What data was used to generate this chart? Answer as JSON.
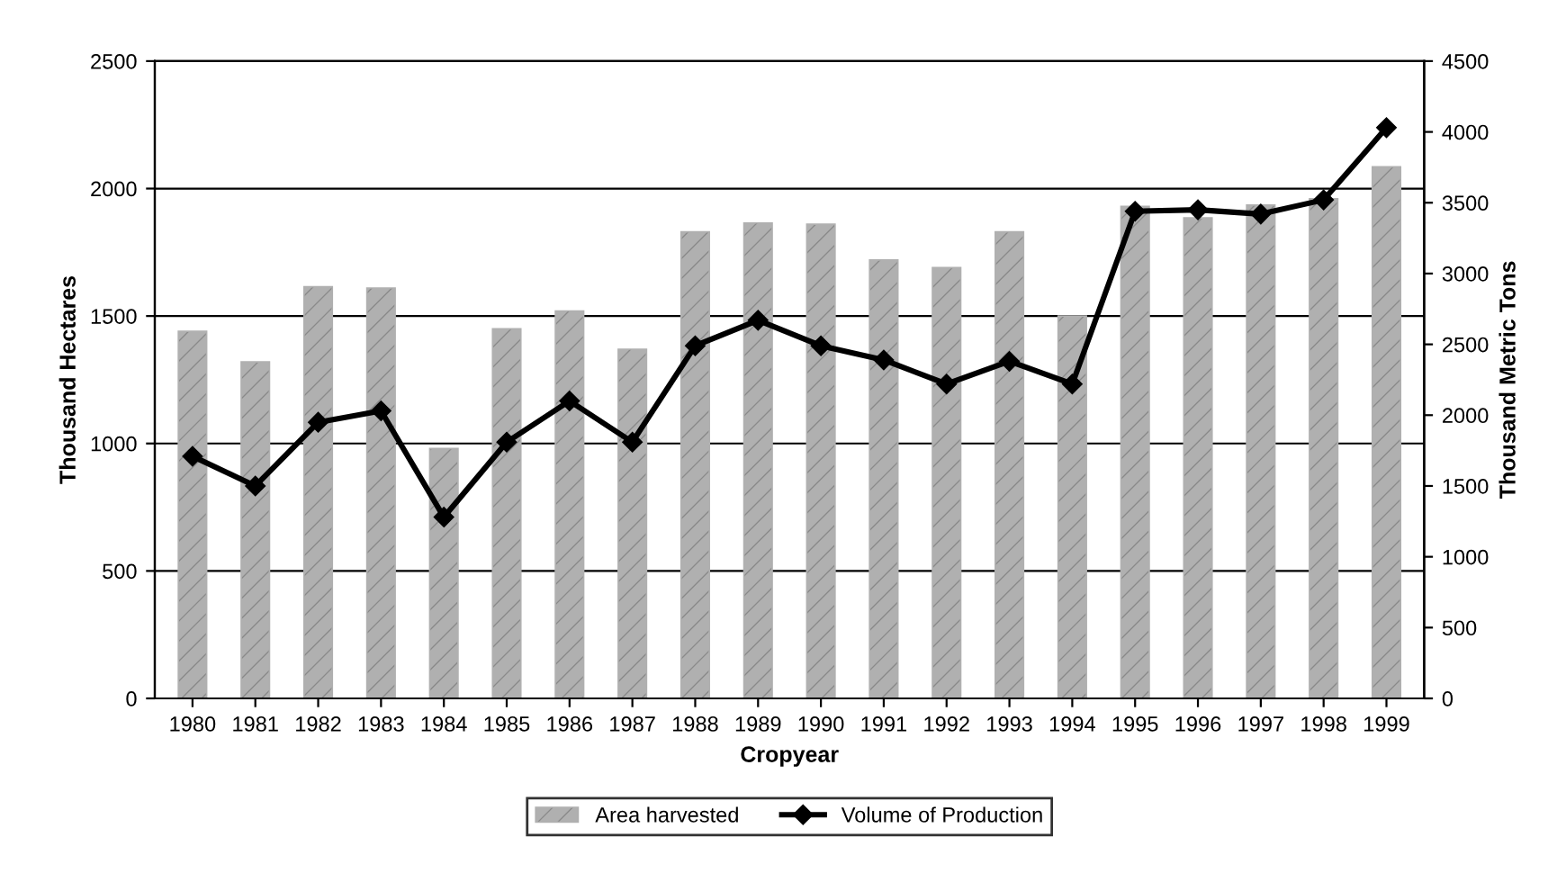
{
  "chart_data": {
    "type": "bar",
    "xlabel": "Cropyear",
    "ylabel": "Thousand Hectares",
    "y2label": "Thousand Metric Tons",
    "categories": [
      "1980",
      "1981",
      "1982",
      "1983",
      "1984",
      "1985",
      "1986",
      "1987",
      "1988",
      "1989",
      "1990",
      "1991",
      "1992",
      "1993",
      "1994",
      "1995",
      "1996",
      "1997",
      "1998",
      "1999"
    ],
    "series": [
      {
        "name": "Area harvested",
        "color": "#b0b0b0",
        "values": [
          1440,
          1320,
          1615,
          1610,
          980,
          1450,
          1520,
          1370,
          1830,
          1865,
          1860,
          1720,
          1690,
          1830,
          1500,
          1930,
          1885,
          1935,
          1960,
          2085
        ]
      },
      {
        "name": "Volume of Production",
        "type": "line",
        "axis": "y2",
        "color": "#000000",
        "marker": "diamond",
        "values": [
          1710,
          1500,
          1950,
          2030,
          1280,
          1810,
          2100,
          1810,
          2490,
          2670,
          2490,
          2390,
          2220,
          2380,
          2220,
          3440,
          3450,
          3420,
          3520,
          4030
        ]
      }
    ],
    "ylim": [
      0,
      2500
    ],
    "yticks": [
      0,
      500,
      1000,
      1500,
      2000,
      2500
    ],
    "y2lim": [
      0,
      4500
    ],
    "y2ticks": [
      0,
      500,
      1000,
      1500,
      2000,
      2500,
      3000,
      3500,
      4000,
      4500
    ],
    "grid": "y",
    "legend": "bottom"
  }
}
